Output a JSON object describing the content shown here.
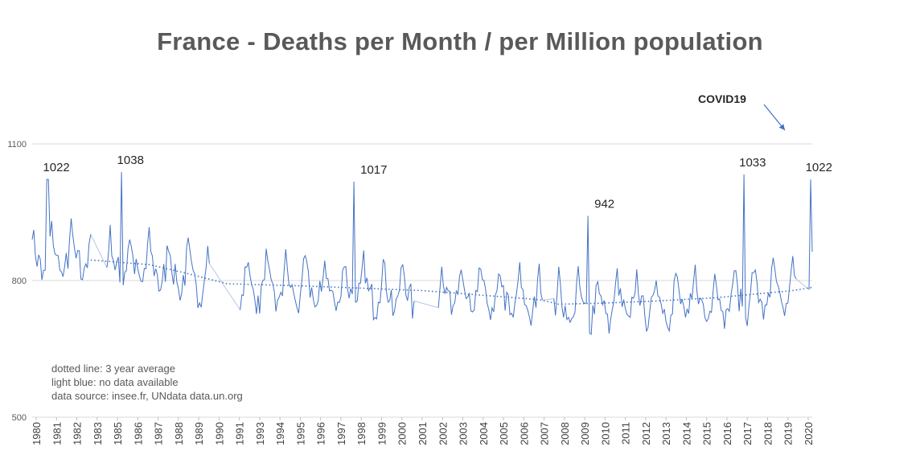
{
  "chart_data": {
    "type": "line",
    "title": "France - Deaths per Month / per Million population",
    "ylim": [
      500,
      1100
    ],
    "yticks": [
      500,
      800,
      1100
    ],
    "xlim": [
      1980,
      2020
    ],
    "x_tick_labels": [
      "1980",
      "1981",
      "1982",
      "1983",
      "1985",
      "1986",
      "1987",
      "1988",
      "1989",
      "1990",
      "1991",
      "1993",
      "1994",
      "1995",
      "1996",
      "1997",
      "1998",
      "1999",
      "2000",
      "2001",
      "2002",
      "2003",
      "2004",
      "2005",
      "2006",
      "2007",
      "2008",
      "2009",
      "2010",
      "2011",
      "2012",
      "2013",
      "2014",
      "2015",
      "2016",
      "2017",
      "2018",
      "2019",
      "2020"
    ],
    "annotations": [
      {
        "text": "1022",
        "x": 1980.8,
        "y": 1022
      },
      {
        "text": "1038",
        "x": 1984.6,
        "y": 1038
      },
      {
        "text": "1017",
        "x": 1996.5,
        "y": 1017
      },
      {
        "text": "942",
        "x": 2008.5,
        "y": 942
      },
      {
        "text": "1033",
        "x": 2016.5,
        "y": 1033
      },
      {
        "text": "1022",
        "x": 2019.9,
        "y": 1022
      },
      {
        "text": "COVID19",
        "x": 2018.2,
        "y": 1145
      }
    ],
    "series": [
      {
        "name": "Deaths per Month / per Million",
        "style": "solid",
        "color": "#4472c4",
        "peaks": [
          [
            1980.8,
            1022
          ],
          [
            1984.6,
            1038
          ],
          [
            1996.5,
            1017
          ],
          [
            2008.5,
            942
          ],
          [
            2016.5,
            1033
          ],
          [
            2019.9,
            1022
          ]
        ]
      },
      {
        "name": "3 year average",
        "style": "dotted",
        "color": "#4472c4",
        "x": [
          1983,
          1986,
          1988,
          1990,
          1994,
          1997,
          2000,
          2003,
          2006,
          2007,
          2009,
          2012,
          2015,
          2017,
          2019,
          2020
        ],
        "values": [
          845,
          835,
          815,
          793,
          788,
          783,
          778,
          768,
          758,
          748,
          750,
          755,
          762,
          770,
          778,
          785
        ]
      }
    ],
    "gaps": [
      [
        1983.0,
        1983.8
      ],
      [
        1989.1,
        1990.6
      ],
      [
        1999.6,
        2000.8
      ],
      [
        2006.2,
        2006.7
      ],
      [
        2019.2,
        2019.8
      ]
    ]
  },
  "notes": {
    "line1": "dotted line: 3 year average",
    "line2": "light blue: no  data available",
    "line3": "data source: insee.fr, UNdata data.un.org"
  }
}
